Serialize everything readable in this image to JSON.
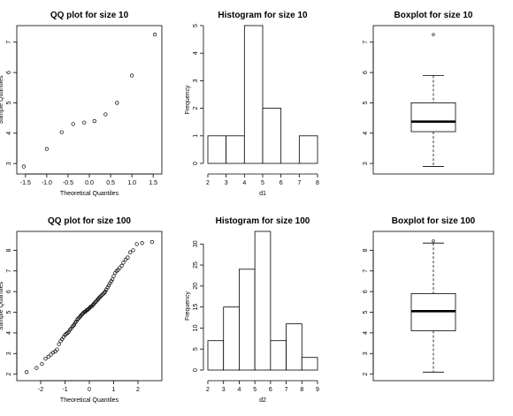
{
  "chart_data": [
    {
      "type": "scatter",
      "kind": "qq",
      "title": "QQ plot for size 10",
      "xlabel": "Theoretical Quantiles",
      "ylabel": "Sample Quantiles",
      "xlim": [
        -1.6,
        1.6
      ],
      "ylim": [
        2.8,
        7.4
      ],
      "xticks": [
        -1.5,
        -1.0,
        -0.5,
        0.0,
        0.5,
        1.0,
        1.5
      ],
      "xtick_labels": [
        "-1.5",
        "-1.0",
        "-0.5",
        "0.0",
        "0.5",
        "1.0",
        "1.5"
      ],
      "yticks": [
        3,
        4,
        5,
        6,
        7
      ],
      "ytick_labels": [
        "3",
        "4",
        "5",
        "6",
        "7"
      ],
      "x": [
        -1.54,
        -1.0,
        -0.65,
        -0.38,
        -0.12,
        0.12,
        0.38,
        0.65,
        1.0,
        1.54
      ],
      "y": [
        2.9,
        3.48,
        4.03,
        4.3,
        4.35,
        4.4,
        4.62,
        5.0,
        5.9,
        7.25
      ]
    },
    {
      "type": "bar",
      "kind": "histogram",
      "title": "Histogram for size 10",
      "xlabel": "d1",
      "ylabel": "Frequency",
      "xlim": [
        2,
        8
      ],
      "ylim": [
        0,
        5
      ],
      "xticks": [
        2,
        3,
        4,
        5,
        6,
        7,
        8
      ],
      "xtick_labels": [
        "2",
        "3",
        "4",
        "5",
        "6",
        "7",
        "8"
      ],
      "yticks": [
        0,
        1,
        2,
        3,
        4,
        5
      ],
      "ytick_labels": [
        "0",
        "1",
        "2",
        "3",
        "4",
        "5"
      ],
      "bin_edges": [
        2,
        3,
        4,
        5,
        6,
        7,
        8
      ],
      "values": [
        1,
        1,
        5,
        2,
        0,
        1
      ]
    },
    {
      "type": "boxplot",
      "title": "Boxplot for size 10",
      "ylim": [
        2.8,
        7.4
      ],
      "yticks": [
        3,
        4,
        5,
        6,
        7
      ],
      "ytick_labels": [
        "3",
        "4",
        "5",
        "6",
        "7"
      ],
      "min": 2.9,
      "q1": 4.05,
      "median": 4.38,
      "q3": 5.0,
      "max": 5.9,
      "outliers": [
        7.25
      ]
    },
    {
      "type": "scatter",
      "kind": "qq",
      "title": "QQ plot for size 100",
      "xlabel": "Theoretical Quantiles",
      "ylabel": "Sample Quantiles",
      "xlim": [
        -2.8,
        2.8
      ],
      "ylim": [
        1.9,
        8.7
      ],
      "xticks": [
        -2,
        -1,
        0,
        1,
        2
      ],
      "xtick_labels": [
        "-2",
        "-1",
        "0",
        "1",
        "2"
      ],
      "yticks": [
        2,
        3,
        4,
        5,
        6,
        7,
        8
      ],
      "ytick_labels": [
        "2",
        "3",
        "4",
        "5",
        "6",
        "7",
        "8"
      ],
      "x": [
        -2.58,
        -2.17,
        -1.95,
        -1.8,
        -1.68,
        -1.58,
        -1.49,
        -1.4,
        -1.33,
        -1.25,
        -1.18,
        -1.12,
        -1.06,
        -1.0,
        -0.95,
        -0.9,
        -0.85,
        -0.8,
        -0.75,
        -0.7,
        -0.66,
        -0.62,
        -0.58,
        -0.53,
        -0.49,
        -0.45,
        -0.41,
        -0.37,
        -0.34,
        -0.3,
        -0.26,
        -0.22,
        -0.18,
        -0.15,
        -0.11,
        -0.07,
        -0.04,
        0.0,
        0.04,
        0.07,
        0.11,
        0.15,
        0.18,
        0.22,
        0.26,
        0.3,
        0.34,
        0.37,
        0.41,
        0.45,
        0.49,
        0.53,
        0.58,
        0.62,
        0.66,
        0.7,
        0.75,
        0.8,
        0.85,
        0.9,
        0.95,
        1.0,
        1.06,
        1.12,
        1.18,
        1.25,
        1.33,
        1.4,
        1.49,
        1.58,
        1.68,
        1.8,
        1.95,
        2.17,
        2.58
      ],
      "y": [
        2.1,
        2.3,
        2.5,
        2.75,
        2.85,
        2.95,
        3.05,
        3.1,
        3.2,
        3.45,
        3.6,
        3.7,
        3.8,
        3.9,
        3.95,
        4.0,
        4.05,
        4.15,
        4.2,
        4.3,
        4.35,
        4.4,
        4.5,
        4.55,
        4.65,
        4.7,
        4.75,
        4.8,
        4.85,
        4.9,
        4.95,
        5.0,
        5.02,
        5.05,
        5.1,
        5.12,
        5.15,
        5.2,
        5.25,
        5.28,
        5.3,
        5.35,
        5.4,
        5.45,
        5.5,
        5.55,
        5.6,
        5.65,
        5.7,
        5.75,
        5.8,
        5.85,
        5.9,
        5.95,
        6.0,
        6.1,
        6.2,
        6.3,
        6.4,
        6.5,
        6.6,
        6.75,
        6.9,
        7.0,
        7.05,
        7.15,
        7.25,
        7.4,
        7.55,
        7.65,
        7.9,
        8.0,
        8.3,
        8.35,
        8.4
      ]
    },
    {
      "type": "bar",
      "kind": "histogram",
      "title": "Histogram for size 100",
      "xlabel": "d2",
      "ylabel": "Frequency",
      "xlim": [
        2,
        9
      ],
      "ylim": [
        0,
        33
      ],
      "xticks": [
        2,
        3,
        4,
        5,
        6,
        7,
        8,
        9
      ],
      "xtick_labels": [
        "2",
        "3",
        "4",
        "5",
        "6",
        "7",
        "8",
        "9"
      ],
      "yticks": [
        0,
        5,
        10,
        15,
        20,
        25,
        30
      ],
      "ytick_labels": [
        "0",
        "5",
        "10",
        "15",
        "20",
        "25",
        "30"
      ],
      "bin_edges": [
        2,
        3,
        4,
        5,
        6,
        7,
        8,
        9
      ],
      "values": [
        7,
        15,
        24,
        33,
        7,
        11,
        3
      ]
    },
    {
      "type": "boxplot",
      "title": "Boxplot for size 100",
      "ylim": [
        1.9,
        8.7
      ],
      "yticks": [
        2,
        3,
        4,
        5,
        6,
        7,
        8
      ],
      "ytick_labels": [
        "2",
        "3",
        "4",
        "5",
        "6",
        "7",
        "8"
      ],
      "min": 2.1,
      "q1": 4.1,
      "median": 5.05,
      "q3": 5.9,
      "max": 8.35,
      "outliers": [
        8.45
      ]
    }
  ]
}
